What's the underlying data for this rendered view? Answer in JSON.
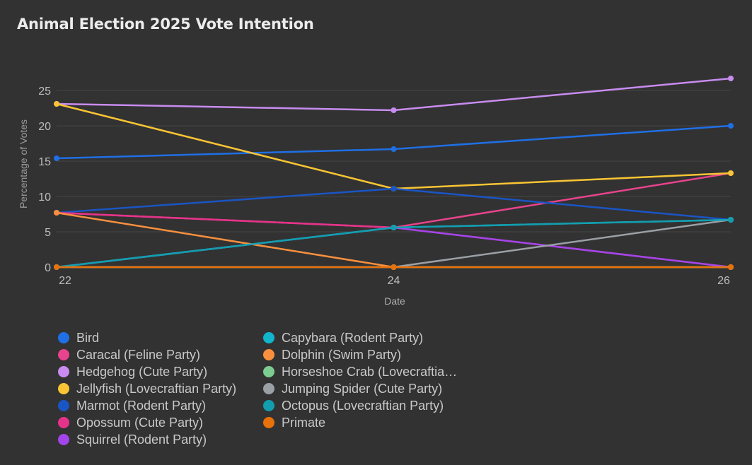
{
  "chart_data": {
    "type": "line",
    "title": "Animal Election 2025 Vote Intention",
    "xlabel": "Date",
    "ylabel": "Percentage of Votes",
    "x": [
      22,
      24,
      26
    ],
    "x_ticks": [
      "22",
      "24",
      "26"
    ],
    "ylim": [
      0,
      27
    ],
    "y_ticks": [
      0,
      5,
      10,
      15,
      20,
      25
    ],
    "grid": true,
    "legend_position": "bottom",
    "series": [
      {
        "name": "Bird",
        "color": "#1f6fe5",
        "values": [
          15.4,
          16.7,
          20.0
        ]
      },
      {
        "name": "Caracal (Feline Party)",
        "color": "#e8438c",
        "values": [
          7.7,
          5.6,
          13.3
        ]
      },
      {
        "name": "Hedgehog (Cute Party)",
        "color": "#c88cf0",
        "values": [
          23.1,
          22.2,
          26.7
        ]
      },
      {
        "name": "Jellyfish (Lovecraftian Party)",
        "color": "#f9c534",
        "values": [
          23.1,
          11.1,
          13.3
        ]
      },
      {
        "name": "Marmot (Rodent Party)",
        "color": "#1a55c4",
        "values": [
          7.7,
          11.1,
          6.7
        ]
      },
      {
        "name": "Opossum (Cute Party)",
        "color": "#e6338a",
        "values": [
          7.7,
          5.6,
          0
        ]
      },
      {
        "name": "Squirrel (Rodent Party)",
        "color": "#a245ea",
        "values": [
          0,
          5.6,
          0
        ]
      },
      {
        "name": "Capybara (Rodent Party)",
        "color": "#12b5cb",
        "values": [
          0,
          5.6,
          6.7
        ]
      },
      {
        "name": "Dolphin (Swim Party)",
        "color": "#fa903e",
        "values": [
          7.7,
          0,
          0
        ]
      },
      {
        "name": "Horseshoe Crab (Lovecraftia…",
        "color": "#7ccc91",
        "values": [
          0,
          0,
          0
        ]
      },
      {
        "name": "Jumping Spider (Cute Party)",
        "color": "#9aa0a6",
        "values": [
          0,
          0,
          6.7
        ]
      },
      {
        "name": "Octopus (Lovecraftian Party)",
        "color": "#129eaf",
        "values": [
          0,
          5.6,
          6.7
        ]
      },
      {
        "name": "Primate",
        "color": "#e8710a",
        "values": [
          0,
          0,
          0
        ]
      }
    ]
  }
}
